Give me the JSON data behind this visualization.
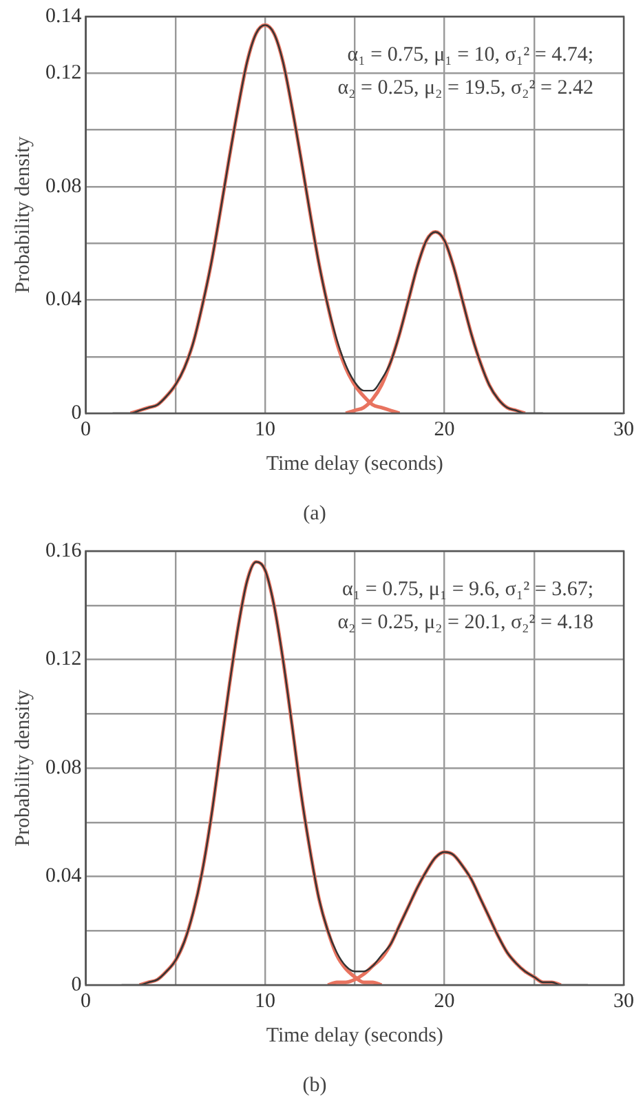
{
  "chart_data": [
    {
      "type": "line",
      "title": "(a)",
      "xlabel": "Time delay (seconds)",
      "ylabel": "Probability density",
      "xlim": [
        0,
        30
      ],
      "xticks": [
        0,
        {
          "value": 5,
          "label": null
        },
        10,
        {
          "value": 15,
          "label": null
        },
        20,
        {
          "value": 25,
          "label": null
        },
        30
      ],
      "ylim": [
        0,
        0.14
      ],
      "yticks": [
        0,
        {
          "value": 0.02,
          "label": null
        },
        0.04,
        {
          "value": 0.06,
          "label": null
        },
        0.08,
        {
          "value": 0.1,
          "label": null
        },
        0.12,
        0.14
      ],
      "grid": true,
      "marker": "none",
      "line_style": "solid",
      "annotations": [
        "α₁ = 0.75, μ₁ = 10, σ₁² = 4.74;",
        "α₂ = 0.25, μ₂ = 19.5, σ₂² = 2.42"
      ],
      "x": [
        1.5,
        2,
        2.5,
        3,
        3.5,
        4,
        4.5,
        5,
        5.5,
        6,
        6.5,
        7,
        7.5,
        8,
        8.5,
        9,
        9.5,
        10,
        10.5,
        11,
        11.5,
        12,
        12.5,
        13,
        13.5,
        14,
        14.5,
        15,
        15.5,
        16,
        16.5,
        17,
        17.5,
        18,
        18.5,
        19,
        19.5,
        20,
        20.5,
        21,
        21.5,
        22,
        22.5,
        23,
        23.5,
        24,
        24.5,
        25,
        25.5
      ],
      "series": [
        {
          "color": "#e8735f",
          "x": [
            2.5,
            3,
            3.5,
            4,
            4.5,
            5,
            5.5,
            6,
            6.5,
            7,
            7.5,
            8,
            8.5,
            9,
            9.5,
            10,
            10.5,
            11,
            11.5,
            12,
            12.5,
            13,
            13.5,
            14,
            14.5,
            15,
            15.5,
            16,
            16.5,
            17,
            17.5
          ],
          "values": [
            0,
            0.001,
            0.002,
            0.003,
            0.006,
            0.01,
            0.016,
            0.025,
            0.038,
            0.053,
            0.071,
            0.09,
            0.108,
            0.124,
            0.134,
            0.137,
            0.134,
            0.124,
            0.108,
            0.09,
            0.071,
            0.053,
            0.038,
            0.025,
            0.016,
            0.01,
            0.006,
            0.003,
            0.002,
            0.001,
            0
          ]
        },
        {
          "color": "#e8735f",
          "x": [
            14.5,
            15,
            15.5,
            16,
            16.5,
            17,
            17.5,
            18,
            18.5,
            19,
            19.5,
            20,
            20.5,
            21,
            21.5,
            22,
            22.5,
            23,
            23.5,
            24,
            24.5
          ],
          "values": [
            0,
            0.001,
            0.002,
            0.005,
            0.01,
            0.018,
            0.028,
            0.04,
            0.052,
            0.061,
            0.064,
            0.061,
            0.052,
            0.04,
            0.028,
            0.018,
            0.01,
            0.005,
            0.002,
            0.001,
            0
          ]
        },
        {
          "color": "#333333",
          "values": [
            0,
            0,
            0,
            0.001,
            0.002,
            0.003,
            0.006,
            0.01,
            0.016,
            0.025,
            0.038,
            0.053,
            0.071,
            0.09,
            0.108,
            0.124,
            0.134,
            0.137,
            0.134,
            0.124,
            0.108,
            0.09,
            0.071,
            0.053,
            0.038,
            0.026,
            0.017,
            0.011,
            0.008,
            0.008,
            0.012,
            0.018,
            0.028,
            0.04,
            0.052,
            0.061,
            0.064,
            0.061,
            0.052,
            0.04,
            0.028,
            0.018,
            0.01,
            0.005,
            0.002,
            0.001,
            0,
            0,
            0
          ]
        }
      ]
    },
    {
      "type": "line",
      "title": "(b)",
      "xlabel": "Time delay (seconds)",
      "ylabel": "Probability density",
      "xlim": [
        0,
        30
      ],
      "xticks": [
        0,
        {
          "value": 5,
          "label": null
        },
        10,
        {
          "value": 15,
          "label": null
        },
        20,
        {
          "value": 25,
          "label": null
        },
        30
      ],
      "ylim": [
        0,
        0.16
      ],
      "yticks": [
        0,
        {
          "value": 0.02,
          "label": null
        },
        0.04,
        {
          "value": 0.06,
          "label": null
        },
        0.08,
        {
          "value": 0.1,
          "label": null
        },
        0.12,
        {
          "value": 0.14,
          "label": null
        },
        0.16
      ],
      "grid": true,
      "marker": "none",
      "line_style": "solid",
      "annotations": [
        "α₁ = 0.75, μ₁ = 9.6, σ₁² = 3.67;",
        "α₂ = 0.25, μ₂ = 20.1, σ₂² = 4.18"
      ],
      "x": [
        2,
        2.5,
        3,
        3.5,
        4,
        4.5,
        5,
        5.5,
        6,
        6.5,
        7,
        7.5,
        8,
        8.5,
        9,
        9.5,
        10,
        10.5,
        11,
        11.5,
        12,
        12.5,
        13,
        13.5,
        14,
        14.5,
        15,
        15.5,
        16,
        16.5,
        17,
        17.5,
        18,
        18.5,
        19,
        19.5,
        20,
        20.5,
        21,
        21.5,
        22,
        22.5,
        23,
        23.5,
        24,
        24.5,
        25,
        25.5,
        26,
        26.5,
        27,
        27.5,
        28
      ],
      "series": [
        {
          "color": "#e8735f",
          "x": [
            3,
            3.5,
            4,
            4.5,
            5,
            5.5,
            6,
            6.5,
            7,
            7.5,
            8,
            8.5,
            9,
            9.5,
            10,
            10.5,
            11,
            11.5,
            12,
            12.5,
            13,
            13.5,
            14,
            14.5,
            15,
            15.5,
            16,
            16.5
          ],
          "values": [
            0,
            0.001,
            0.002,
            0.005,
            0.009,
            0.016,
            0.027,
            0.042,
            0.062,
            0.086,
            0.11,
            0.132,
            0.149,
            0.156,
            0.153,
            0.14,
            0.12,
            0.096,
            0.071,
            0.05,
            0.032,
            0.02,
            0.011,
            0.006,
            0.003,
            0.001,
            0.001,
            0
          ]
        },
        {
          "color": "#e8735f",
          "x": [
            13.5,
            14,
            14.5,
            15,
            15.5,
            16,
            16.5,
            17,
            17.5,
            18,
            18.5,
            19,
            19.5,
            20,
            20.5,
            21,
            21.5,
            22,
            22.5,
            23,
            23.5,
            24,
            24.5,
            25,
            25.5,
            26,
            26.5
          ],
          "values": [
            0,
            0.001,
            0.001,
            0.002,
            0.004,
            0.007,
            0.01,
            0.015,
            0.022,
            0.029,
            0.036,
            0.042,
            0.047,
            0.049,
            0.048,
            0.044,
            0.039,
            0.032,
            0.025,
            0.018,
            0.012,
            0.008,
            0.005,
            0.003,
            0.001,
            0.001,
            0
          ]
        },
        {
          "color": "#333333",
          "values": [
            0,
            0,
            0,
            0.001,
            0.002,
            0.005,
            0.009,
            0.016,
            0.027,
            0.042,
            0.062,
            0.086,
            0.11,
            0.132,
            0.149,
            0.156,
            0.153,
            0.14,
            0.12,
            0.096,
            0.071,
            0.05,
            0.032,
            0.02,
            0.012,
            0.007,
            0.005,
            0.005,
            0.007,
            0.011,
            0.015,
            0.022,
            0.029,
            0.036,
            0.042,
            0.047,
            0.049,
            0.048,
            0.044,
            0.039,
            0.032,
            0.025,
            0.018,
            0.012,
            0.008,
            0.005,
            0.003,
            0.001,
            0.001,
            0,
            0,
            0,
            0
          ]
        }
      ]
    }
  ]
}
